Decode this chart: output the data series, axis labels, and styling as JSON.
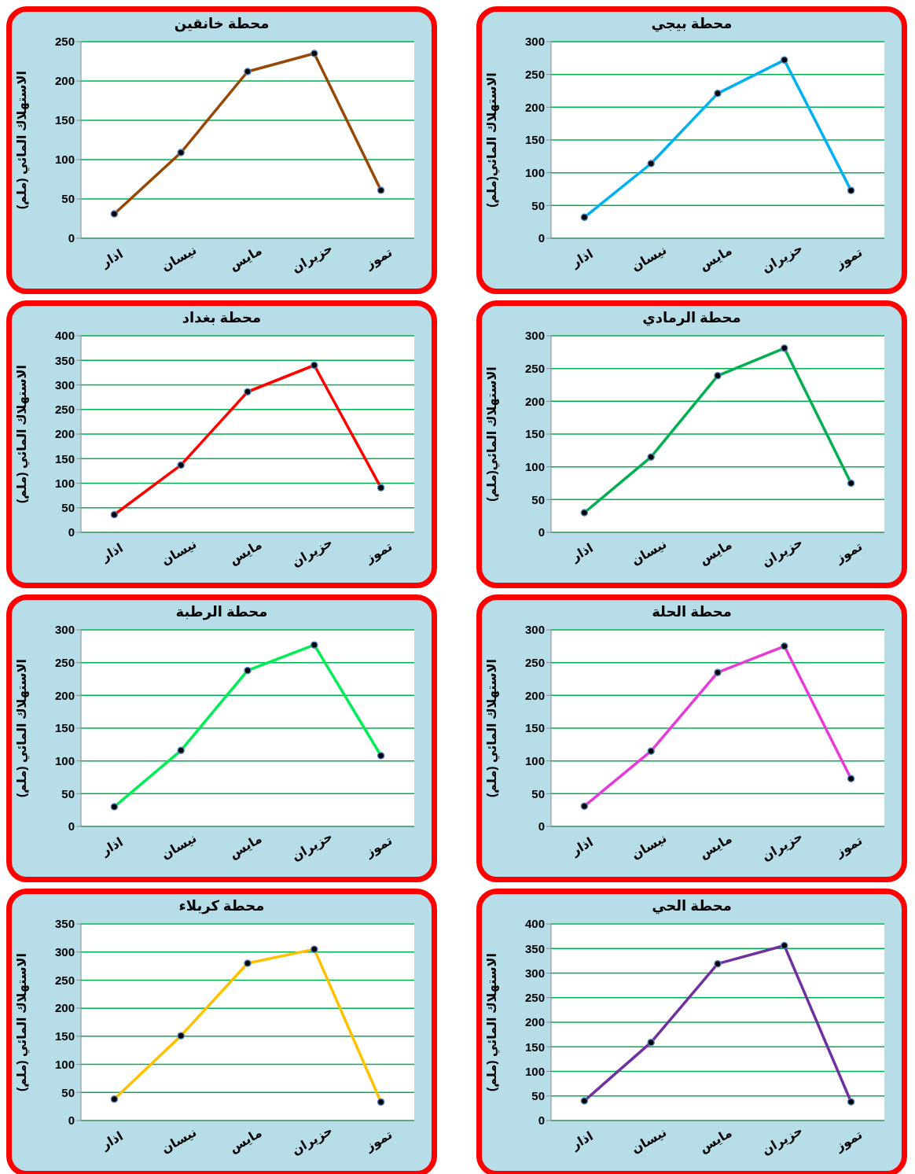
{
  "chart_data": [
    {
      "type": "line",
      "title": "محطة خانقين",
      "ylabel": "الاستهلاك المائي (ملم)",
      "categories": [
        "اذار",
        "نيسان",
        "مايس",
        "حزيران",
        "تموز"
      ],
      "series": [
        {
          "color": "#974806",
          "values": [
            31,
            109,
            212,
            235,
            61
          ]
        }
      ],
      "ylim": [
        0,
        250
      ],
      "yticks": [
        0,
        50,
        100,
        150,
        200,
        250
      ],
      "grid": "y",
      "marker": "circle",
      "line_style": "solid"
    },
    {
      "type": "line",
      "title": "محطة بيجي",
      "ylabel": "الاستهلاك المائي(ملم)",
      "categories": [
        "اذار",
        "نيسان",
        "مايس",
        "حزيران",
        "تموز"
      ],
      "series": [
        {
          "color": "#00b0f0",
          "values": [
            32,
            114,
            221,
            272,
            73
          ]
        }
      ],
      "ylim": [
        0,
        300
      ],
      "yticks": [
        0,
        50,
        100,
        150,
        200,
        250,
        300
      ],
      "grid": "y",
      "marker": "circle",
      "line_style": "solid"
    },
    {
      "type": "line",
      "title": "محطة بغداد",
      "ylabel": "الاستهلاك المائي (ملم)",
      "categories": [
        "اذار",
        "نيسان",
        "مايس",
        "حزيران",
        "تموز"
      ],
      "series": [
        {
          "color": "#ff0000",
          "values": [
            36,
            137,
            286,
            340,
            91
          ]
        }
      ],
      "ylim": [
        0,
        400
      ],
      "yticks": [
        0,
        50,
        100,
        150,
        200,
        250,
        300,
        350,
        400
      ],
      "grid": "y",
      "marker": "circle",
      "line_style": "solid"
    },
    {
      "type": "line",
      "title": "محطة الرمادي",
      "ylabel": "الاستهلاك المائي(ملم)",
      "categories": [
        "اذار",
        "نيسان",
        "مايس",
        "حزيران",
        "تموز"
      ],
      "series": [
        {
          "color": "#00b050",
          "values": [
            30,
            115,
            239,
            281,
            75
          ]
        }
      ],
      "ylim": [
        0,
        300
      ],
      "yticks": [
        0,
        50,
        100,
        150,
        200,
        250,
        300
      ],
      "grid": "y",
      "marker": "circle",
      "line_style": "solid"
    },
    {
      "type": "line",
      "title": "محطة الرطبة",
      "ylabel": "الاستهلاك المائي (ملم)",
      "categories": [
        "اذار",
        "نيسان",
        "مايس",
        "حزيران",
        "تموز"
      ],
      "series": [
        {
          "color": "#00ee55",
          "values": [
            30,
            116,
            238,
            277,
            108
          ]
        }
      ],
      "ylim": [
        0,
        300
      ],
      "yticks": [
        0,
        50,
        100,
        150,
        200,
        250,
        300
      ],
      "grid": "y",
      "marker": "circle",
      "line_style": "solid"
    },
    {
      "type": "line",
      "title": "محطة الحلة",
      "ylabel": "الاستهلاك المائي (ملم)",
      "categories": [
        "اذار",
        "نيسان",
        "مايس",
        "حزيران",
        "تموز"
      ],
      "series": [
        {
          "color": "#e83ad8",
          "values": [
            31,
            115,
            235,
            275,
            73
          ]
        }
      ],
      "ylim": [
        0,
        300
      ],
      "yticks": [
        0,
        50,
        100,
        150,
        200,
        250,
        300
      ],
      "grid": "y",
      "marker": "circle",
      "line_style": "solid"
    },
    {
      "type": "line",
      "title": "محطة كربلاء",
      "ylabel": "الاستهلاك المائي (ملم)",
      "categories": [
        "اذار",
        "نيسان",
        "مايس",
        "حزيران",
        "تموز"
      ],
      "series": [
        {
          "color": "#ffc000",
          "values": [
            38,
            151,
            280,
            305,
            33
          ]
        }
      ],
      "ylim": [
        0,
        350
      ],
      "yticks": [
        0,
        50,
        100,
        150,
        200,
        250,
        300,
        350
      ],
      "grid": "y",
      "marker": "circle",
      "line_style": "solid"
    },
    {
      "type": "line",
      "title": "محطة الحي",
      "ylabel": "الاستهلاك المائي (ملم)",
      "categories": [
        "اذار",
        "نيسان",
        "مايس",
        "حزيران",
        "تموز"
      ],
      "series": [
        {
          "color": "#7030a0",
          "values": [
            40,
            159,
            319,
            356,
            38
          ]
        }
      ],
      "ylim": [
        0,
        400
      ],
      "yticks": [
        0,
        50,
        100,
        150,
        200,
        250,
        300,
        350,
        400
      ],
      "grid": "y",
      "marker": "circle",
      "line_style": "solid"
    }
  ]
}
